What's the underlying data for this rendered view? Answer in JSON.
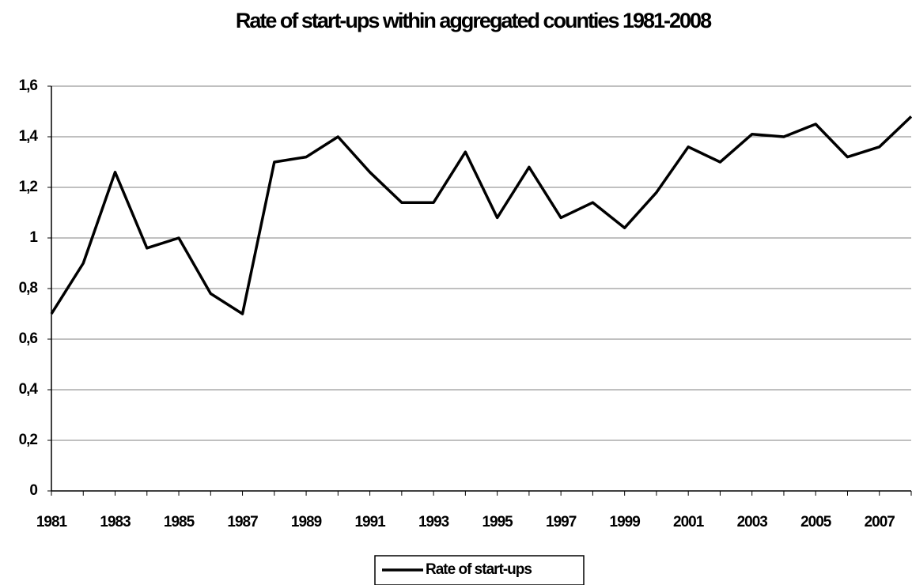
{
  "chart_data": {
    "type": "line",
    "title": "Rate of start-ups within aggregated counties 1981-2008",
    "x": [
      1981,
      1982,
      1983,
      1984,
      1985,
      1986,
      1987,
      1988,
      1989,
      1990,
      1991,
      1992,
      1993,
      1994,
      1995,
      1996,
      1997,
      1998,
      1999,
      2000,
      2001,
      2002,
      2003,
      2004,
      2005,
      2006,
      2007,
      2008
    ],
    "series": [
      {
        "name": "Rate of start-ups",
        "color": "#000000",
        "values": [
          0.7,
          0.9,
          1.26,
          0.96,
          1.0,
          0.78,
          0.7,
          1.3,
          1.32,
          1.4,
          1.26,
          1.14,
          1.14,
          1.34,
          1.08,
          1.28,
          1.08,
          1.14,
          1.04,
          1.18,
          1.36,
          1.3,
          1.41,
          1.4,
          1.45,
          1.32,
          1.36,
          1.48
        ]
      }
    ],
    "xlim": [
      1981,
      2008
    ],
    "xticks": [
      1981,
      1983,
      1985,
      1987,
      1989,
      1991,
      1993,
      1995,
      1997,
      1999,
      2001,
      2003,
      2005,
      2007
    ],
    "ylim": [
      0,
      1.6
    ],
    "yticks": [
      0,
      {
        "value": 0.2,
        "label": "0,2"
      },
      {
        "value": 0.4,
        "label": "0,4"
      },
      {
        "value": 0.6,
        "label": "0,6"
      },
      {
        "value": 0.8,
        "label": "0,8"
      },
      1,
      {
        "value": 1.2,
        "label": "1,2"
      },
      {
        "value": 1.4,
        "label": "1,4"
      },
      {
        "value": 1.6,
        "label": "1,6"
      }
    ],
    "grid": true,
    "legend": "bottom"
  }
}
